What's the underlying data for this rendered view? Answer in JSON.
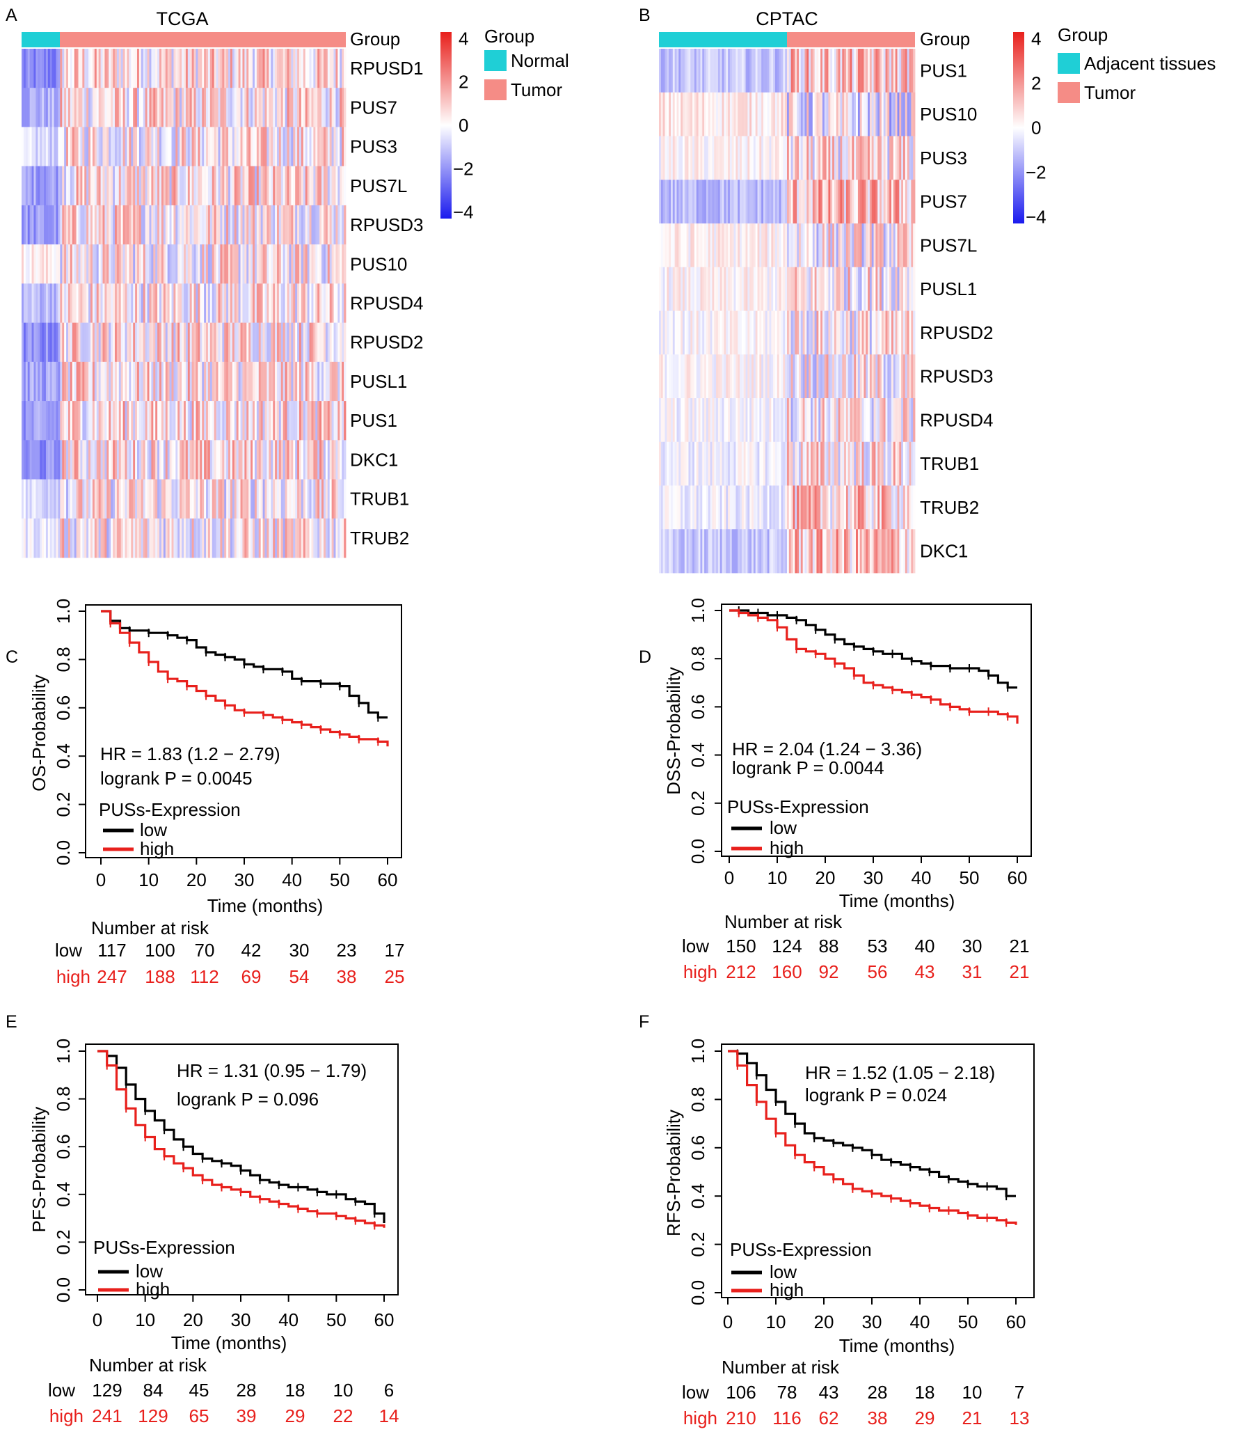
{
  "panels": {
    "A": {
      "letter": "A",
      "title": "TCGA",
      "group_label": "Group",
      "legend_title": "Group",
      "legend_entries": [
        "Normal",
        "Tumor"
      ],
      "genes": [
        "RPUSD1",
        "PUS7",
        "PUS3",
        "PUS7L",
        "RPUSD3",
        "PUS10",
        "RPUSD4",
        "RPUSD2",
        "PUSL1",
        "PUS1",
        "DKC1",
        "TRUB1",
        "TRUB2"
      ],
      "colorbar_ticks": [
        "4",
        "2",
        "0",
        "−2",
        "−4"
      ]
    },
    "B": {
      "letter": "B",
      "title": "CPTAC",
      "group_label": "Group",
      "legend_title": "Group",
      "legend_entries": [
        "Adjacent tissues",
        "Tumor"
      ],
      "genes": [
        "PUS1",
        "PUS10",
        "PUS3",
        "PUS7",
        "PUS7L",
        "PUSL1",
        "RPUSD2",
        "RPUSD3",
        "RPUSD4",
        "TRUB1",
        "TRUB2",
        "DKC1"
      ],
      "colorbar_ticks": [
        "4",
        "2",
        "0",
        "−2",
        "−4"
      ]
    },
    "C": {
      "letter": "C",
      "ylabel": "OS-Probability",
      "xlabel": "Time (months)",
      "hr": "HR = 1.83 (1.2 − 2.79)",
      "logrank": "logrank P = 0.0045",
      "legend_title": "PUSs-Expression",
      "legend_low": "low",
      "legend_high": "high",
      "risk_title": "Number at risk",
      "risk_low": [
        "117",
        "100",
        "70",
        "42",
        "30",
        "23",
        "17"
      ],
      "risk_high": [
        "247",
        "188",
        "112",
        "69",
        "54",
        "38",
        "25"
      ]
    },
    "D": {
      "letter": "D",
      "ylabel": "DSS-Probability",
      "xlabel": "Time (months)",
      "hr": "HR = 2.04 (1.24 − 3.36)",
      "logrank": "logrank P = 0.0044",
      "legend_title": "PUSs-Expression",
      "legend_low": "low",
      "legend_high": "high",
      "risk_title": "Number at risk",
      "risk_low": [
        "150",
        "124",
        "88",
        "53",
        "40",
        "30",
        "21"
      ],
      "risk_high": [
        "212",
        "160",
        "92",
        "56",
        "43",
        "31",
        "21"
      ]
    },
    "E": {
      "letter": "E",
      "ylabel": "PFS-Probability",
      "xlabel": "Time (months)",
      "hr": "HR = 1.31 (0.95 − 1.79)",
      "logrank": "logrank P = 0.096",
      "legend_title": "PUSs-Expression",
      "legend_low": "low",
      "legend_high": "high",
      "risk_title": "Number at risk",
      "risk_low": [
        "129",
        "84",
        "45",
        "28",
        "18",
        "10",
        "6"
      ],
      "risk_high": [
        "241",
        "129",
        "65",
        "39",
        "29",
        "22",
        "14"
      ]
    },
    "F": {
      "letter": "F",
      "ylabel": "RFS-Probability",
      "xlabel": "Time (months)",
      "hr": "HR = 1.52 (1.05 − 2.18)",
      "logrank": "logrank P = 0.024",
      "legend_title": "PUSs-Expression",
      "legend_low": "low",
      "legend_high": "high",
      "risk_title": "Number at risk",
      "risk_low": [
        "106",
        "78",
        "43",
        "28",
        "18",
        "10",
        "7"
      ],
      "risk_high": [
        "210",
        "116",
        "62",
        "38",
        "29",
        "21",
        "13"
      ]
    }
  },
  "risk_labels": {
    "low": "low",
    "high": "high"
  },
  "colors": {
    "normal": "#1fcfd6",
    "tumor": "#f58c86",
    "high_line": "#e8201c",
    "low_line": "#000000",
    "heat_high": "#e8201c",
    "heat_low": "#1a1aee"
  },
  "chart_data": [
    {
      "type": "heatmap",
      "panel": "A",
      "title": "TCGA",
      "rows": [
        "RPUSD1",
        "PUS7",
        "PUS3",
        "PUS7L",
        "RPUSD3",
        "PUS10",
        "RPUSD4",
        "RPUSD2",
        "PUSL1",
        "PUS1",
        "DKC1",
        "TRUB1",
        "TRUB2"
      ],
      "groups": [
        {
          "name": "Normal",
          "fraction": 0.12
        },
        {
          "name": "Tumor",
          "fraction": 0.88
        }
      ],
      "normal_means": [
        -2.2,
        -1.4,
        -0.7,
        -1.6,
        -1.8,
        0.3,
        -1.1,
        -2.0,
        -1.6,
        -1.8,
        -2.0,
        -0.6,
        -0.3
      ],
      "tumor_means": [
        0.5,
        0.4,
        0.3,
        0.4,
        0.4,
        0.2,
        0.3,
        0.5,
        0.4,
        0.5,
        0.5,
        0.2,
        0.2
      ],
      "color_range": [
        -4,
        4
      ]
    },
    {
      "type": "heatmap",
      "panel": "B",
      "title": "CPTAC",
      "rows": [
        "PUS1",
        "PUS10",
        "PUS3",
        "PUS7",
        "PUS7L",
        "PUSL1",
        "RPUSD2",
        "RPUSD3",
        "RPUSD4",
        "TRUB1",
        "TRUB2",
        "DKC1"
      ],
      "groups": [
        {
          "name": "Adjacent tissues",
          "fraction": 0.5
        },
        {
          "name": "Tumor",
          "fraction": 0.5
        }
      ],
      "normal_means": [
        -1.0,
        0.4,
        0.1,
        -1.2,
        0.2,
        0.1,
        0.0,
        0.1,
        -0.1,
        -0.2,
        -0.3,
        -1.0
      ],
      "tumor_means": [
        0.9,
        -0.4,
        0.3,
        1.0,
        0.1,
        0.3,
        0.2,
        0.1,
        0.2,
        0.4,
        0.8,
        1.0
      ],
      "color_range": [
        -4,
        4
      ]
    },
    {
      "type": "line",
      "panel": "C",
      "xlabel": "Time (months)",
      "ylabel": "OS-Probability",
      "xlim": [
        0,
        60
      ],
      "ylim": [
        0,
        1
      ],
      "x_ticks": [
        0,
        10,
        20,
        30,
        40,
        50,
        60
      ],
      "y_ticks": [
        0,
        0.2,
        0.4,
        0.6,
        0.8,
        1.0
      ],
      "series": [
        {
          "name": "low",
          "color": "#000000",
          "x": [
            0,
            2,
            4,
            6,
            8,
            10,
            12,
            14,
            16,
            18,
            20,
            22,
            24,
            26,
            28,
            30,
            32,
            34,
            36,
            38,
            40,
            42,
            44,
            46,
            48,
            50,
            52,
            54,
            56,
            58,
            60
          ],
          "y": [
            1.0,
            0.96,
            0.93,
            0.92,
            0.92,
            0.91,
            0.91,
            0.9,
            0.89,
            0.88,
            0.85,
            0.83,
            0.82,
            0.81,
            0.8,
            0.78,
            0.77,
            0.76,
            0.76,
            0.75,
            0.72,
            0.71,
            0.71,
            0.7,
            0.7,
            0.69,
            0.65,
            0.62,
            0.58,
            0.56,
            0.56
          ]
        },
        {
          "name": "high",
          "color": "#e8201c",
          "x": [
            0,
            2,
            4,
            6,
            8,
            10,
            12,
            14,
            16,
            18,
            20,
            22,
            24,
            26,
            28,
            30,
            32,
            34,
            36,
            38,
            40,
            42,
            44,
            46,
            48,
            50,
            52,
            54,
            56,
            58,
            60
          ],
          "y": [
            1.0,
            0.95,
            0.91,
            0.87,
            0.83,
            0.79,
            0.75,
            0.72,
            0.71,
            0.69,
            0.67,
            0.65,
            0.63,
            0.61,
            0.59,
            0.58,
            0.58,
            0.57,
            0.56,
            0.55,
            0.54,
            0.53,
            0.52,
            0.51,
            0.5,
            0.49,
            0.48,
            0.47,
            0.47,
            0.46,
            0.44
          ]
        }
      ]
    },
    {
      "type": "line",
      "panel": "D",
      "xlabel": "Time (months)",
      "ylabel": "DSS-Probability",
      "xlim": [
        0,
        60
      ],
      "ylim": [
        0,
        1
      ],
      "x_ticks": [
        0,
        10,
        20,
        30,
        40,
        50,
        60
      ],
      "y_ticks": [
        0,
        0.2,
        0.4,
        0.6,
        0.8,
        1.0
      ],
      "series": [
        {
          "name": "low",
          "color": "#000000",
          "x": [
            0,
            2,
            4,
            6,
            8,
            10,
            12,
            14,
            16,
            18,
            20,
            22,
            24,
            26,
            28,
            30,
            32,
            34,
            36,
            38,
            40,
            42,
            44,
            46,
            48,
            50,
            52,
            54,
            56,
            58,
            60
          ],
          "y": [
            1.0,
            1.0,
            0.99,
            0.99,
            0.98,
            0.98,
            0.97,
            0.96,
            0.94,
            0.92,
            0.9,
            0.88,
            0.86,
            0.85,
            0.84,
            0.83,
            0.82,
            0.82,
            0.8,
            0.79,
            0.78,
            0.77,
            0.77,
            0.76,
            0.76,
            0.76,
            0.75,
            0.73,
            0.7,
            0.68,
            0.68
          ]
        },
        {
          "name": "high",
          "color": "#e8201c",
          "x": [
            0,
            2,
            4,
            6,
            8,
            10,
            12,
            14,
            16,
            18,
            20,
            22,
            24,
            26,
            28,
            30,
            32,
            34,
            36,
            38,
            40,
            42,
            44,
            46,
            48,
            50,
            52,
            54,
            56,
            58,
            60
          ],
          "y": [
            1.0,
            0.99,
            0.98,
            0.97,
            0.96,
            0.93,
            0.88,
            0.84,
            0.83,
            0.82,
            0.8,
            0.78,
            0.76,
            0.73,
            0.7,
            0.69,
            0.68,
            0.67,
            0.66,
            0.65,
            0.64,
            0.63,
            0.61,
            0.6,
            0.59,
            0.58,
            0.58,
            0.58,
            0.57,
            0.56,
            0.53
          ]
        }
      ]
    },
    {
      "type": "line",
      "panel": "E",
      "xlabel": "Time (months)",
      "ylabel": "PFS-Probability",
      "xlim": [
        0,
        60
      ],
      "ylim": [
        0,
        1
      ],
      "x_ticks": [
        0,
        10,
        20,
        30,
        40,
        50,
        60
      ],
      "y_ticks": [
        0,
        0.2,
        0.4,
        0.6,
        0.8,
        1.0
      ],
      "series": [
        {
          "name": "low",
          "color": "#000000",
          "x": [
            0,
            2,
            4,
            6,
            8,
            10,
            12,
            14,
            16,
            18,
            20,
            22,
            24,
            26,
            28,
            30,
            32,
            34,
            36,
            38,
            40,
            42,
            44,
            46,
            48,
            50,
            52,
            54,
            56,
            58,
            60
          ],
          "y": [
            1.0,
            0.98,
            0.93,
            0.86,
            0.8,
            0.75,
            0.71,
            0.67,
            0.63,
            0.6,
            0.57,
            0.55,
            0.54,
            0.53,
            0.52,
            0.5,
            0.48,
            0.46,
            0.45,
            0.44,
            0.43,
            0.43,
            0.42,
            0.41,
            0.4,
            0.4,
            0.38,
            0.37,
            0.36,
            0.32,
            0.28
          ]
        },
        {
          "name": "high",
          "color": "#e8201c",
          "x": [
            0,
            2,
            4,
            6,
            8,
            10,
            12,
            14,
            16,
            18,
            20,
            22,
            24,
            26,
            28,
            30,
            32,
            34,
            36,
            38,
            40,
            42,
            44,
            46,
            48,
            50,
            52,
            54,
            56,
            58,
            60
          ],
          "y": [
            1.0,
            0.94,
            0.84,
            0.76,
            0.69,
            0.64,
            0.59,
            0.56,
            0.53,
            0.51,
            0.48,
            0.46,
            0.44,
            0.43,
            0.42,
            0.41,
            0.39,
            0.38,
            0.37,
            0.36,
            0.35,
            0.34,
            0.33,
            0.32,
            0.32,
            0.31,
            0.3,
            0.29,
            0.28,
            0.27,
            0.26
          ]
        }
      ]
    },
    {
      "type": "line",
      "panel": "F",
      "xlabel": "Time (months)",
      "ylabel": "RFS-Probability",
      "xlim": [
        0,
        60
      ],
      "ylim": [
        0,
        1
      ],
      "x_ticks": [
        0,
        10,
        20,
        30,
        40,
        50,
        60
      ],
      "y_ticks": [
        0,
        0.2,
        0.4,
        0.6,
        0.8,
        1.0
      ],
      "series": [
        {
          "name": "low",
          "color": "#000000",
          "x": [
            0,
            2,
            4,
            6,
            8,
            10,
            12,
            14,
            16,
            18,
            20,
            22,
            24,
            26,
            28,
            30,
            32,
            34,
            36,
            38,
            40,
            42,
            44,
            46,
            48,
            50,
            52,
            54,
            56,
            58,
            60
          ],
          "y": [
            1.0,
            0.99,
            0.95,
            0.9,
            0.84,
            0.79,
            0.74,
            0.7,
            0.66,
            0.64,
            0.63,
            0.62,
            0.61,
            0.6,
            0.59,
            0.57,
            0.55,
            0.54,
            0.53,
            0.52,
            0.51,
            0.5,
            0.48,
            0.47,
            0.46,
            0.45,
            0.44,
            0.44,
            0.43,
            0.4,
            0.4
          ]
        },
        {
          "name": "high",
          "color": "#e8201c",
          "x": [
            0,
            2,
            4,
            6,
            8,
            10,
            12,
            14,
            16,
            18,
            20,
            22,
            24,
            26,
            28,
            30,
            32,
            34,
            36,
            38,
            40,
            42,
            44,
            46,
            48,
            50,
            52,
            54,
            56,
            58,
            60
          ],
          "y": [
            1.0,
            0.94,
            0.86,
            0.79,
            0.72,
            0.66,
            0.61,
            0.57,
            0.54,
            0.52,
            0.49,
            0.47,
            0.45,
            0.43,
            0.42,
            0.41,
            0.4,
            0.39,
            0.38,
            0.37,
            0.36,
            0.35,
            0.34,
            0.34,
            0.33,
            0.32,
            0.31,
            0.31,
            0.3,
            0.29,
            0.28
          ]
        }
      ]
    }
  ]
}
